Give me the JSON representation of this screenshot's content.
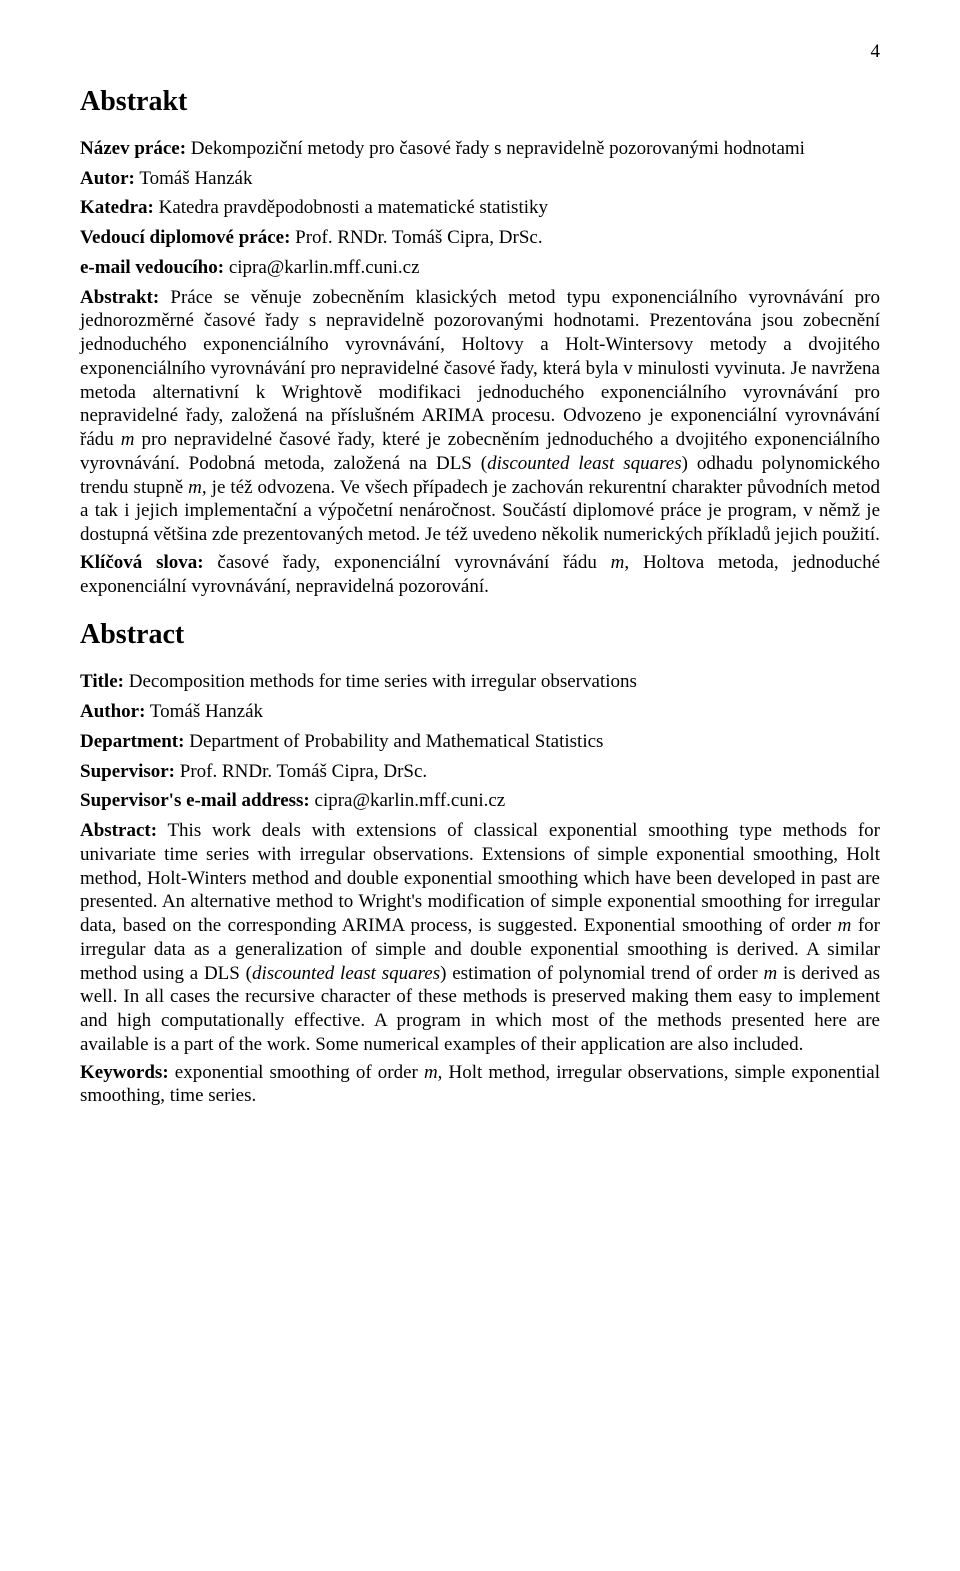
{
  "page_number": "4",
  "cz": {
    "section_heading": "Abstrakt",
    "title_label": "Název práce:",
    "title_value": "Dekompoziční metody pro časové řady s nepravidelně pozorovanými hodnotami",
    "author_label": "Autor:",
    "author_value": "Tomáš Hanzák",
    "dept_label": "Katedra:",
    "dept_value": "Katedra pravděpodobnosti a matematické statistiky",
    "supervisor_label": "Vedoucí diplomové práce:",
    "supervisor_value": "Prof. RNDr. Tomáš Cipra, DrSc.",
    "email_label": "e-mail vedoucího:",
    "email_value": "cipra@karlin.mff.cuni.cz",
    "abstract_label": "Abstrakt:",
    "abstract_pre": "Práce se věnuje zobecněním klasických metod typu exponenciálního vyrovnávání pro jednorozměrné časové řady s nepravidelně pozorovanými hodnotami. Prezentována jsou zobecnění jednoduchého exponenciálního vyrovnávání, Holtovy a Holt-Wintersovy metody a dvojitého exponenciálního vyrovnávání pro nepravidelné časové řady, která byla v minulosti vyvinuta. Je navržena metoda alternativní k Wrightově modifikaci jednoduchého exponenciálního vyrovnávání pro nepravidelné řady, založená na příslušném ARIMA procesu. Odvozeno je exponenciální vyrovnávání řádu ",
    "order_var1": "m",
    "abstract_mid1": " pro nepravidelné časové řady, které je zobecněním jednoduchého a dvojitého exponenciálního vyrovnávání. Podobná metoda, založená na DLS (",
    "dls_it": "discounted least squares",
    "abstract_mid2": ") odhadu polynomického trendu stupně ",
    "order_var2": "m",
    "abstract_post": ", je též odvozena. Ve všech případech je zachován rekurentní charakter původních metod a tak i jejich implementační a výpočetní nenáročnost. Součástí diplomové práce je program, v němž je dostupná většina zde prezentovaných metod. Je též uvedeno několik numerických příkladů jejich použití.",
    "keywords_label": "Klíčová slova:",
    "keywords_pre": "časové řady, exponenciální vyrovnávání řádu ",
    "keywords_var": "m",
    "keywords_post": ", Holtova metoda, jednoduché exponenciální vyrovnávání, nepravidelná pozorování."
  },
  "en": {
    "section_heading": "Abstract",
    "title_label": "Title:",
    "title_value": "Decomposition methods for time series with irregular observations",
    "author_label": "Author:",
    "author_value": "Tomáš Hanzák",
    "dept_label": "Department:",
    "dept_value": "Department of Probability and Mathematical Statistics",
    "supervisor_label": "Supervisor:",
    "supervisor_value": "Prof. RNDr. Tomáš Cipra, DrSc.",
    "email_label": "Supervisor's e-mail address:",
    "email_value": "cipra@karlin.mff.cuni.cz",
    "abstract_label": "Abstract:",
    "abstract_pre": "This work deals with extensions of classical exponential smoothing type methods for univariate time series with irregular observations. Extensions of simple exponential smoothing, Holt method, Holt-Winters method and double exponential smoothing which have been developed in past are presented. An alternative method to Wright's modification of simple exponential smoothing for irregular data, based on the corresponding ARIMA process, is suggested. Exponential smoothing of order ",
    "order_var1": "m",
    "abstract_mid1": " for irregular data as a generalization of simple and double exponential smoothing is derived. A similar method using a DLS (",
    "dls_it": "discounted least squares",
    "abstract_mid2": ") estimation of polynomial trend of order ",
    "order_var2": "m",
    "abstract_post": " is derived as well. In all cases the recursive character of these methods is preserved making them easy to implement and high computationally effective. A program in which most of the methods presented here are available is a part of the work. Some numerical examples of their application are also included.",
    "keywords_label": "Keywords:",
    "keywords_pre": "exponential smoothing of order ",
    "keywords_var": "m",
    "keywords_post": ", Holt method, irregular observations, simple exponential smoothing, time series."
  }
}
